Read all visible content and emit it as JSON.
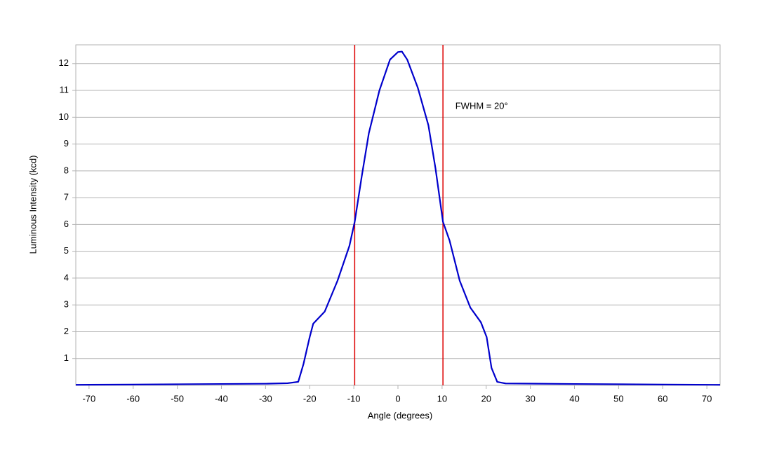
{
  "chart_data": {
    "type": "line",
    "x_label": "Angle (degrees)",
    "y_label": "Luminous Intensity (kcd)",
    "x": [
      -73,
      -60,
      -50,
      -40,
      -30,
      -25,
      -22.6,
      -21.4,
      -20,
      -19.2,
      -16.6,
      -13.7,
      -11,
      -9.8,
      -8.2,
      -6.6,
      -4.2,
      -1.8,
      0,
      0.9,
      2.1,
      4.5,
      6.9,
      8.5,
      10.2,
      11.7,
      14,
      16.4,
      18.8,
      20.1,
      21.2,
      22.5,
      24.4,
      40,
      60,
      73
    ],
    "series": [
      {
        "name": "Luminous Intensity",
        "color": "#0000cc",
        "values": [
          0.02,
          0.03,
          0.04,
          0.05,
          0.06,
          0.08,
          0.13,
          0.8,
          1.8,
          2.3,
          2.75,
          3.9,
          5.2,
          6.1,
          7.8,
          9.4,
          11,
          12.15,
          12.43,
          12.45,
          12.15,
          11.1,
          9.7,
          8.1,
          6.1,
          5.4,
          3.9,
          2.9,
          2.35,
          1.8,
          0.65,
          0.13,
          0.07,
          0.05,
          0.03,
          0.02
        ]
      }
    ],
    "vlines": [
      -9.8,
      10.2
    ],
    "vline_color": "#dd0000",
    "annotations": [
      {
        "text": "FWHM = 20°",
        "x": 13,
        "y": 10.4
      }
    ],
    "xlim": [
      -73,
      73
    ],
    "ylim": [
      0,
      12.7
    ],
    "xticks": [
      -70,
      -60,
      -50,
      -40,
      -30,
      -20,
      -10,
      0,
      10,
      20,
      30,
      40,
      50,
      60,
      70
    ],
    "yticks": [
      1,
      2,
      3,
      4,
      5,
      6,
      7,
      8,
      9,
      10,
      11,
      12
    ],
    "grid": true
  }
}
